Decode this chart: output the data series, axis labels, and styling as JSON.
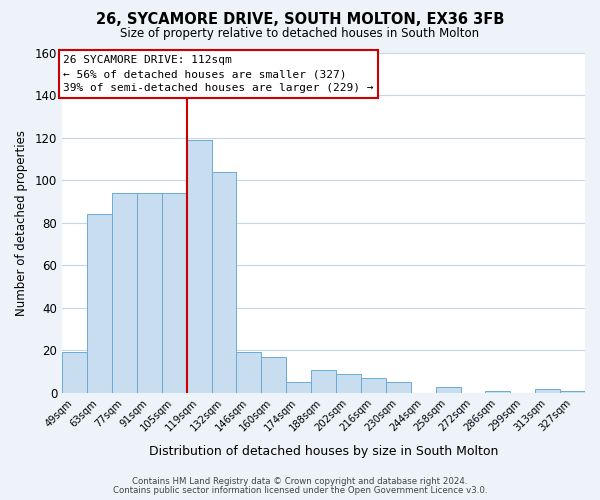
{
  "title": "26, SYCAMORE DRIVE, SOUTH MOLTON, EX36 3FB",
  "subtitle": "Size of property relative to detached houses in South Molton",
  "xlabel": "Distribution of detached houses by size in South Molton",
  "ylabel": "Number of detached properties",
  "bin_labels": [
    "49sqm",
    "63sqm",
    "77sqm",
    "91sqm",
    "105sqm",
    "119sqm",
    "132sqm",
    "146sqm",
    "160sqm",
    "174sqm",
    "188sqm",
    "202sqm",
    "216sqm",
    "230sqm",
    "244sqm",
    "258sqm",
    "272sqm",
    "286sqm",
    "299sqm",
    "313sqm",
    "327sqm"
  ],
  "bar_heights": [
    19,
    84,
    94,
    94,
    94,
    119,
    104,
    19,
    17,
    5,
    11,
    9,
    7,
    5,
    0,
    3,
    0,
    1,
    0,
    2,
    1
  ],
  "bar_color": "#c9ddf0",
  "bar_edge_color": "#6aaad4",
  "vline_color": "#cc0000",
  "ylim": [
    0,
    160
  ],
  "yticks": [
    0,
    20,
    40,
    60,
    80,
    100,
    120,
    140,
    160
  ],
  "annotation_title": "26 SYCAMORE DRIVE: 112sqm",
  "annotation_line1": "← 56% of detached houses are smaller (327)",
  "annotation_line2": "39% of semi-detached houses are larger (229) →",
  "footer_line1": "Contains HM Land Registry data © Crown copyright and database right 2024.",
  "footer_line2": "Contains public sector information licensed under the Open Government Licence v3.0.",
  "background_color": "#eef2f9",
  "plot_bg_color": "#ffffff",
  "grid_color": "#c8d4e8"
}
